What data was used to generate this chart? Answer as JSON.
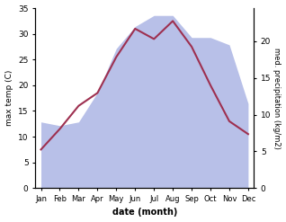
{
  "months": [
    "Jan",
    "Feb",
    "Mar",
    "Apr",
    "May",
    "Jun",
    "Jul",
    "Aug",
    "Sep",
    "Oct",
    "Nov",
    "Dec"
  ],
  "temp": [
    7.5,
    11.5,
    16.0,
    18.5,
    25.5,
    31.0,
    29.0,
    32.5,
    27.5,
    20.0,
    13.0,
    10.5
  ],
  "precip": [
    9.0,
    8.5,
    9.0,
    13.0,
    19.0,
    22.0,
    23.5,
    23.5,
    20.5,
    20.5,
    19.5,
    11.5
  ],
  "temp_color": "#9e3050",
  "precip_fill_color": "#b8c0e8",
  "temp_ylim": [
    0,
    35
  ],
  "precip_ylim": [
    0,
    35
  ],
  "temp_yticks": [
    0,
    5,
    10,
    15,
    20,
    25,
    30,
    35
  ],
  "precip_yticks_vals": [
    0,
    5,
    10,
    15,
    20
  ],
  "xlabel": "date (month)",
  "ylabel_left": "max temp (C)",
  "ylabel_right": "med. precipitation (kg/m2)",
  "bg_color": "#ffffff"
}
